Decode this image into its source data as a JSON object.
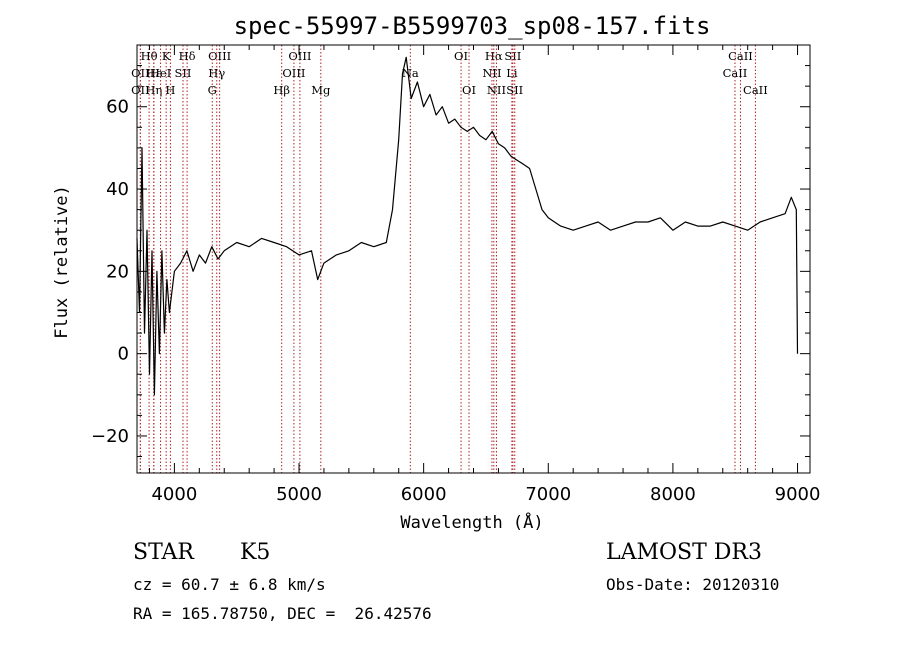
{
  "chart_data": {
    "type": "line",
    "title": "spec-55997-B5599703_sp08-157.fits",
    "xlabel": "Wavelength (Å)",
    "ylabel": "Flux (relative)",
    "xlim": [
      3700,
      9100
    ],
    "ylim": [
      -29,
      75
    ],
    "x_ticks": [
      4000,
      5000,
      6000,
      7000,
      8000,
      9000
    ],
    "y_ticks": [
      -20,
      0,
      20,
      40,
      60
    ],
    "series": [
      {
        "name": "flux",
        "x": [
          3700,
          3720,
          3740,
          3760,
          3780,
          3800,
          3820,
          3840,
          3860,
          3880,
          3900,
          3920,
          3940,
          3960,
          3980,
          4000,
          4050,
          4100,
          4150,
          4200,
          4250,
          4300,
          4350,
          4400,
          4500,
          4600,
          4700,
          4800,
          4900,
          5000,
          5100,
          5150,
          5200,
          5300,
          5400,
          5500,
          5600,
          5700,
          5750,
          5800,
          5830,
          5860,
          5900,
          5950,
          6000,
          6050,
          6100,
          6150,
          6200,
          6250,
          6300,
          6350,
          6400,
          6450,
          6500,
          6550,
          6600,
          6650,
          6700,
          6750,
          6800,
          6850,
          6900,
          6950,
          7000,
          7050,
          7100,
          7200,
          7300,
          7400,
          7500,
          7600,
          7700,
          7800,
          7900,
          8000,
          8100,
          8200,
          8300,
          8400,
          8500,
          8600,
          8700,
          8800,
          8900,
          8950,
          8990,
          9000
        ],
        "y": [
          28,
          10,
          50,
          5,
          30,
          -5,
          25,
          -10,
          20,
          0,
          25,
          5,
          18,
          10,
          15,
          20,
          22,
          25,
          20,
          24,
          22,
          26,
          23,
          25,
          27,
          26,
          28,
          27,
          26,
          24,
          25,
          18,
          22,
          24,
          25,
          27,
          26,
          27,
          35,
          52,
          68,
          72,
          62,
          66,
          60,
          63,
          58,
          60,
          56,
          57,
          55,
          54,
          55,
          53,
          52,
          54,
          51,
          50,
          48,
          47,
          46,
          45,
          40,
          35,
          33,
          32,
          31,
          30,
          31,
          32,
          30,
          31,
          32,
          32,
          33,
          30,
          32,
          31,
          31,
          32,
          31,
          30,
          32,
          33,
          34,
          38,
          35,
          0
        ]
      }
    ],
    "line_markers": [
      {
        "label": "Hθ",
        "x": 3797,
        "row": 0
      },
      {
        "label": "OII",
        "x": 3727,
        "row": 1
      },
      {
        "label": "OII",
        "x": 3727,
        "row": 2
      },
      {
        "label": "Hε",
        "x": 3835,
        "row": 1
      },
      {
        "label": "Hη",
        "x": 3835,
        "row": 2
      },
      {
        "label": "K",
        "x": 3934,
        "row": 0
      },
      {
        "label": "HeI",
        "x": 3889,
        "row": 1
      },
      {
        "label": "H",
        "x": 3968,
        "row": 2
      },
      {
        "label": "SII",
        "x": 4069,
        "row": 1
      },
      {
        "label": "Hδ",
        "x": 4102,
        "row": 0
      },
      {
        "label": "OIII",
        "x": 4363,
        "row": 0
      },
      {
        "label": "Hγ",
        "x": 4340,
        "row": 1
      },
      {
        "label": "G",
        "x": 4304,
        "row": 2
      },
      {
        "label": "Hβ",
        "x": 4861,
        "row": 2
      },
      {
        "label": "OIII",
        "x": 5007,
        "row": 0
      },
      {
        "label": "OIII",
        "x": 4959,
        "row": 1
      },
      {
        "label": "Mg",
        "x": 5175,
        "row": 2
      },
      {
        "label": "Na",
        "x": 5893,
        "row": 1
      },
      {
        "label": "OI",
        "x": 6300,
        "row": 0
      },
      {
        "label": "OI",
        "x": 6364,
        "row": 2
      },
      {
        "label": "Hα",
        "x": 6563,
        "row": 0
      },
      {
        "label": "SII",
        "x": 6716,
        "row": 0
      },
      {
        "label": "NII",
        "x": 6548,
        "row": 1
      },
      {
        "label": "Li",
        "x": 6708,
        "row": 1
      },
      {
        "label": "NII",
        "x": 6584,
        "row": 2
      },
      {
        "label": "SII",
        "x": 6731,
        "row": 2
      },
      {
        "label": "CaII",
        "x": 8542,
        "row": 0
      },
      {
        "label": "CaII",
        "x": 8498,
        "row": 1
      },
      {
        "label": "CaII",
        "x": 8662,
        "row": 2
      }
    ]
  },
  "info": {
    "object_class": "STAR",
    "subclass": "K5",
    "survey": "LAMOST DR3",
    "redshift": "cz = 60.7 ± 6.8 km/s",
    "obs_date": "Obs-Date: 20120310",
    "coords": "RA = 165.78750, DEC =  26.42576"
  }
}
